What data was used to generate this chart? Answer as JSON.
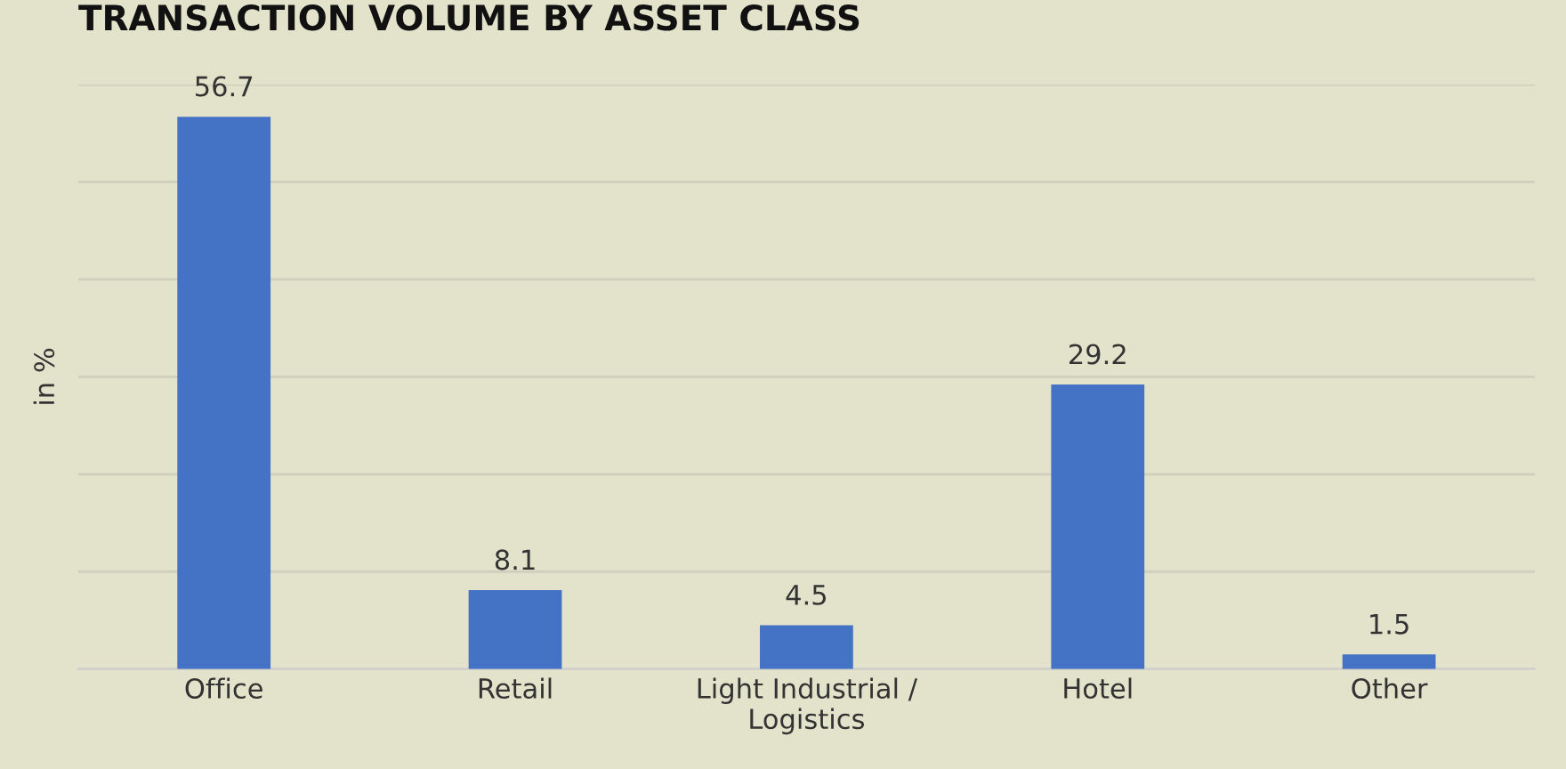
{
  "chart_data": {
    "type": "bar",
    "title": "TRANSACTION VOLUME BY ASSET CLASS",
    "ylabel": "in %",
    "categories": [
      "Office",
      "Retail",
      "Light Industrial /\nLogistics",
      "Hotel",
      "Other"
    ],
    "values": [
      56.7,
      8.1,
      4.5,
      29.2,
      1.5
    ],
    "color": "#4472c4",
    "data_labels": true,
    "ylim": [
      0,
      60
    ],
    "yticks": [
      {
        "value": 0,
        "label": null
      },
      {
        "value": 10,
        "label": null
      },
      {
        "value": 20,
        "label": null
      },
      {
        "value": 30,
        "label": null
      },
      {
        "value": 40,
        "label": null
      },
      {
        "value": 50,
        "label": null
      },
      {
        "value": 60,
        "label": null
      }
    ],
    "tick_labels": "x",
    "grid": "y",
    "legend": false
  }
}
